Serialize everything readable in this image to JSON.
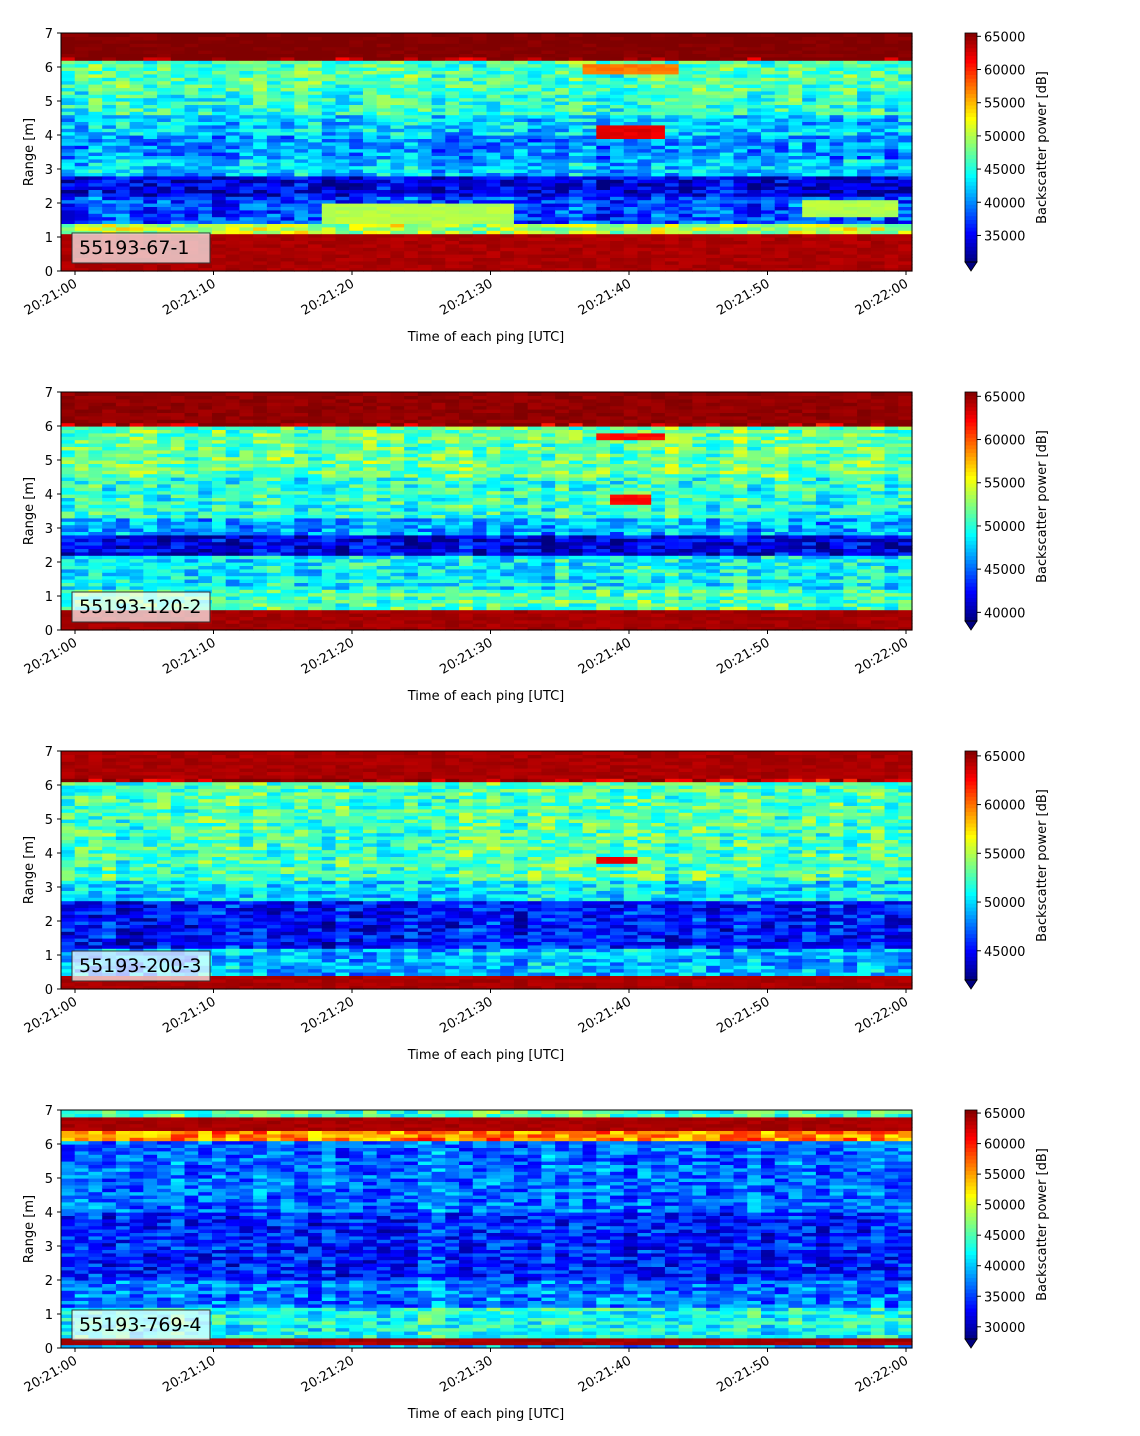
{
  "chart_data": [
    {
      "type": "heatmap",
      "label": "55193-67-1",
      "xlabel": "Time of each ping [UTC]",
      "ylabel": "Range [m]",
      "xticks": [
        "20:21:00",
        "20:21:10",
        "20:21:20",
        "20:21:30",
        "20:21:40",
        "20:21:50",
        "20:22:00"
      ],
      "yticks": [
        "0",
        "1",
        "2",
        "3",
        "4",
        "5",
        "6",
        "7"
      ],
      "ylim": [
        0,
        7
      ],
      "xlim": [
        "20:21:00",
        "20:22:00"
      ],
      "colorbar": {
        "label": "Backscatter power [dB]",
        "ticks": [
          "35000",
          "40000",
          "45000",
          "50000",
          "55000",
          "60000",
          "65000"
        ],
        "range": [
          31000,
          65500
        ]
      },
      "colormap": "jet",
      "features": [
        {
          "range_m": [
            6.3,
            7.0
          ],
          "level": 65500
        },
        {
          "range_m": [
            0.0,
            1.1
          ],
          "level": 64000
        },
        {
          "range_m": [
            5.8,
            6.1
          ],
          "time": [
            "20:21:37",
            "20:21:44"
          ],
          "level": 57000
        },
        {
          "range_m": [
            3.9,
            4.3
          ],
          "time": [
            "20:21:38",
            "20:21:43"
          ],
          "level": 62000
        },
        {
          "range_m": [
            1.4,
            2.0
          ],
          "time": [
            "20:21:18",
            "20:21:32"
          ],
          "level": 50000
        },
        {
          "range_m": [
            1.6,
            2.1
          ],
          "time": [
            "20:21:53",
            "20:22:00"
          ],
          "level": 50000
        }
      ]
    },
    {
      "type": "heatmap",
      "label": "55193-120-2",
      "xlabel": "Time of each ping [UTC]",
      "ylabel": "Range [m]",
      "xticks": [
        "20:21:00",
        "20:21:10",
        "20:21:20",
        "20:21:30",
        "20:21:40",
        "20:21:50",
        "20:22:00"
      ],
      "yticks": [
        "0",
        "1",
        "2",
        "3",
        "4",
        "5",
        "6",
        "7"
      ],
      "ylim": [
        0,
        7
      ],
      "xlim": [
        "20:21:00",
        "20:22:00"
      ],
      "colorbar": {
        "label": "Backscatter power [dB]",
        "ticks": [
          "40000",
          "45000",
          "50000",
          "55000",
          "60000",
          "65000"
        ],
        "range": [
          39000,
          65500
        ]
      },
      "colormap": "jet",
      "features": [
        {
          "range_m": [
            6.1,
            7.0
          ],
          "level": 65000
        },
        {
          "range_m": [
            0.0,
            0.6
          ],
          "level": 64500
        },
        {
          "range_m": [
            5.6,
            5.8
          ],
          "time": [
            "20:21:38",
            "20:21:43"
          ],
          "level": 62000
        },
        {
          "range_m": [
            3.7,
            4.0
          ],
          "time": [
            "20:21:39",
            "20:21:42"
          ],
          "level": 62000
        }
      ]
    },
    {
      "type": "heatmap",
      "label": "55193-200-3",
      "xlabel": "Time of each ping [UTC]",
      "ylabel": "Range [m]",
      "xticks": [
        "20:21:00",
        "20:21:10",
        "20:21:20",
        "20:21:30",
        "20:21:40",
        "20:21:50",
        "20:22:00"
      ],
      "yticks": [
        "0",
        "1",
        "2",
        "3",
        "4",
        "5",
        "6",
        "7"
      ],
      "ylim": [
        0,
        7
      ],
      "xlim": [
        "20:21:00",
        "20:22:00"
      ],
      "colorbar": {
        "label": "Backscatter power [dB]",
        "ticks": [
          "45000",
          "50000",
          "55000",
          "60000",
          "65000"
        ],
        "range": [
          42000,
          65500
        ]
      },
      "colormap": "jet",
      "features": [
        {
          "range_m": [
            6.2,
            7.0
          ],
          "level": 64500
        },
        {
          "range_m": [
            0.0,
            0.4
          ],
          "level": 64500
        },
        {
          "range_m": [
            3.7,
            3.9
          ],
          "time": [
            "20:21:38",
            "20:21:41"
          ],
          "level": 63000
        }
      ]
    },
    {
      "type": "heatmap",
      "label": "55193-769-4",
      "xlabel": "Time of each ping [UTC]",
      "ylabel": "Range [m]",
      "xticks": [
        "20:21:00",
        "20:21:10",
        "20:21:20",
        "20:21:30",
        "20:21:40",
        "20:21:50",
        "20:22:00"
      ],
      "yticks": [
        "0",
        "1",
        "2",
        "3",
        "4",
        "5",
        "6",
        "7"
      ],
      "ylim": [
        0,
        7
      ],
      "xlim": [
        "20:21:00",
        "20:22:00"
      ],
      "colorbar": {
        "label": "Backscatter power [dB]",
        "ticks": [
          "30000",
          "35000",
          "40000",
          "45000",
          "50000",
          "55000",
          "60000",
          "65000"
        ],
        "range": [
          28000,
          65500
        ]
      },
      "colormap": "jet",
      "features": [
        {
          "range_m": [
            6.4,
            6.8
          ],
          "level": 64000
        },
        {
          "range_m": [
            0.15,
            0.35
          ],
          "level": 64000
        }
      ]
    }
  ]
}
